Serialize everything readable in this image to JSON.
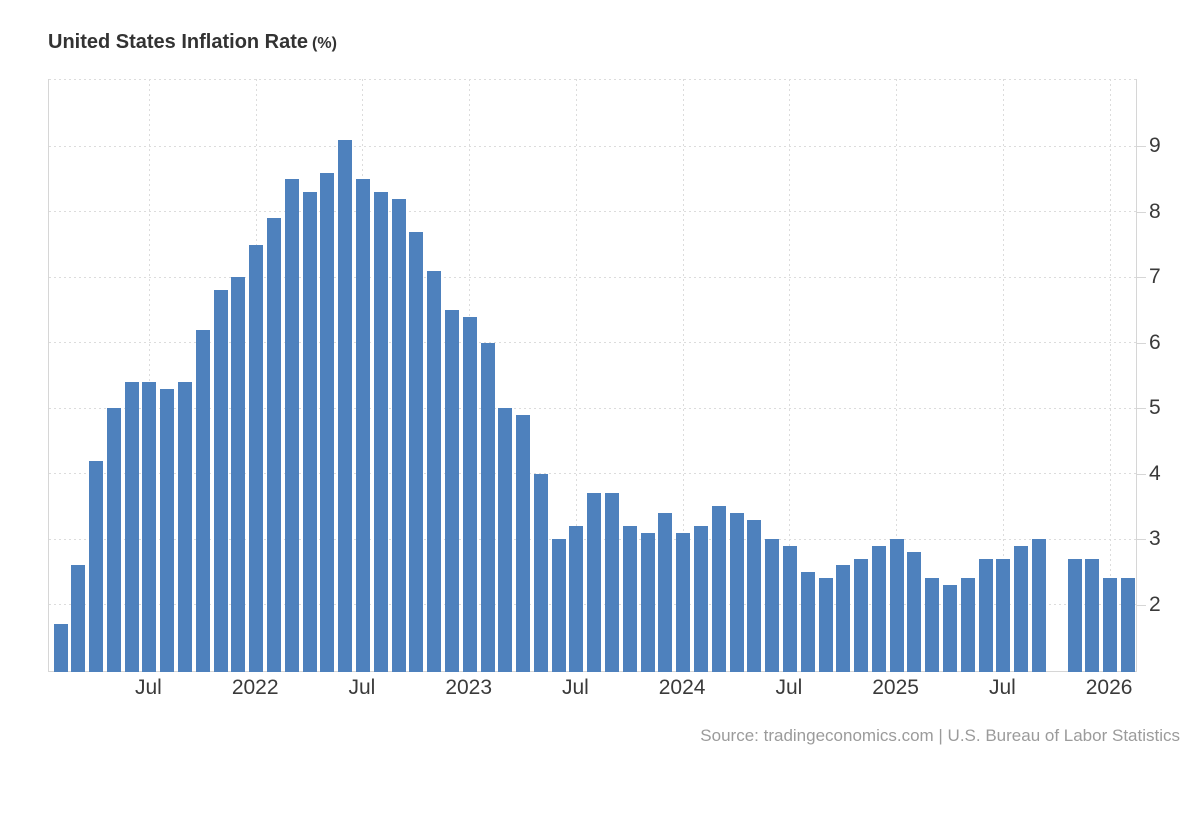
{
  "title": {
    "main": "United States Inflation Rate",
    "unit": "(%)"
  },
  "source": {
    "text": "Source: tradingeconomics.com | U.S. Bureau of Labor Statistics"
  },
  "colors": {
    "bar": "#4e81bd",
    "axis_line": "#d6d6d6",
    "grid": "#dcdcdc",
    "tick_label": "#3a3a3a",
    "title": "#333333",
    "source": "#9b9b9b",
    "background": "#ffffff"
  },
  "chart_data": {
    "type": "bar",
    "title": "United States Inflation Rate (%)",
    "xlabel": "",
    "ylabel": "",
    "grid": true,
    "legend": "none",
    "y_axis_side": "right",
    "ylim": [
      0.97,
      10.03
    ],
    "y_ticks": [
      2,
      3,
      4,
      5,
      6,
      7,
      8,
      9
    ],
    "x": [
      "2021-02",
      "2021-03",
      "2021-04",
      "2021-05",
      "2021-06",
      "2021-07",
      "2021-08",
      "2021-09",
      "2021-10",
      "2021-11",
      "2021-12",
      "2022-01",
      "2022-02",
      "2022-03",
      "2022-04",
      "2022-05",
      "2022-06",
      "2022-07",
      "2022-08",
      "2022-09",
      "2022-10",
      "2022-11",
      "2022-12",
      "2023-01",
      "2023-02",
      "2023-03",
      "2023-04",
      "2023-05",
      "2023-06",
      "2023-07",
      "2023-08",
      "2023-09",
      "2023-10",
      "2023-11",
      "2023-12",
      "2024-01",
      "2024-02",
      "2024-03",
      "2024-04",
      "2024-05",
      "2024-06",
      "2024-07",
      "2024-08",
      "2024-09",
      "2024-10",
      "2024-11",
      "2024-12",
      "2025-01",
      "2025-02",
      "2025-03",
      "2025-04",
      "2025-05",
      "2025-06",
      "2025-07",
      "2025-08",
      "2025-09",
      "2025-10",
      "2025-11",
      "2025-12",
      "2026-01",
      "2026-02"
    ],
    "values": [
      1.7,
      2.6,
      4.2,
      5.0,
      5.4,
      5.4,
      5.3,
      5.4,
      6.2,
      6.8,
      7.0,
      7.5,
      7.9,
      8.5,
      8.3,
      8.6,
      9.1,
      8.5,
      8.3,
      8.2,
      7.7,
      7.1,
      6.5,
      6.4,
      6.0,
      5.0,
      4.9,
      4.0,
      3.0,
      3.2,
      3.7,
      3.7,
      3.2,
      3.1,
      3.4,
      3.1,
      3.2,
      3.5,
      3.4,
      3.3,
      3.0,
      2.9,
      2.5,
      2.4,
      2.6,
      2.7,
      2.9,
      3.0,
      2.8,
      2.4,
      2.3,
      2.4,
      2.7,
      2.7,
      2.9,
      3.0,
      null,
      2.7,
      2.7,
      2.4,
      2.4
    ],
    "x_ticks": [
      {
        "slot": 5,
        "label": "Jul"
      },
      {
        "slot": 11,
        "label": "2022"
      },
      {
        "slot": 17,
        "label": "Jul"
      },
      {
        "slot": 23,
        "label": "2023"
      },
      {
        "slot": 29,
        "label": "Jul"
      },
      {
        "slot": 35,
        "label": "2024"
      },
      {
        "slot": 41,
        "label": "Jul"
      },
      {
        "slot": 47,
        "label": "2025"
      },
      {
        "slot": 53,
        "label": "Jul"
      },
      {
        "slot": 59,
        "label": "2026"
      }
    ]
  }
}
